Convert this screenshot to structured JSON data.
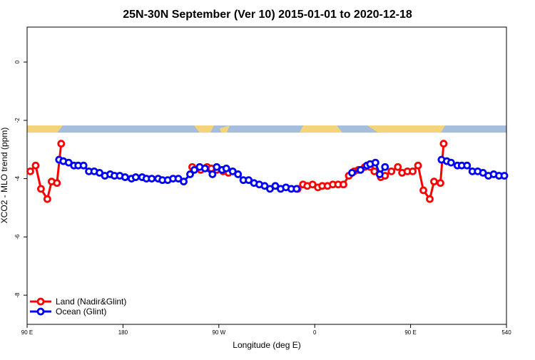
{
  "chart_data": {
    "type": "line",
    "title": "25N-30N September (Ver 10)   2015-01-01 to 2020-12-18",
    "xlabel": "Longitude (deg E)",
    "ylabel": "XCO2 - MLO trend (ppm)",
    "xlim": [
      90,
      540
    ],
    "xticks": [
      {
        "value": 90,
        "label": "90 E"
      },
      180,
      {
        "value": 270,
        "label": "90 W"
      },
      {
        "value": 360,
        "label": "0"
      },
      {
        "value": 450,
        "label": "90 E"
      },
      540
    ],
    "ylim": [
      -9,
      1.2
    ],
    "yticks": [
      0,
      -2,
      -4,
      -6,
      -8
    ],
    "legend": "bottom-left",
    "series": [
      {
        "name": "Land (Nadir&Glint)",
        "color": "#ff0000",
        "x": [
          93,
          98,
          103,
          109,
          113,
          118,
          122,
          null,
          245,
          253,
          259,
          263,
          268,
          274,
          279,
          null,
          344,
          349,
          353,
          358,
          363,
          367,
          372,
          377,
          382,
          387,
          392,
          397,
          401,
          407,
          412,
          416,
          422,
          426,
          432,
          438,
          442,
          447,
          452,
          457,
          462,
          468,
          472,
          478,
          481
        ],
        "values": [
          -3.75,
          -3.55,
          -4.35,
          -4.7,
          -4.1,
          -4.15,
          -2.8,
          null,
          -3.6,
          -3.7,
          -3.6,
          -3.65,
          -3.7,
          -3.75,
          -3.8,
          null,
          -4.35,
          -4.2,
          -4.25,
          -4.2,
          -4.3,
          -4.25,
          -4.25,
          -4.2,
          -4.2,
          -4.2,
          -3.9,
          -3.75,
          -3.7,
          -3.6,
          -3.6,
          -3.75,
          -3.95,
          -3.9,
          -3.75,
          -3.6,
          -3.8,
          -3.75,
          -3.75,
          -3.55,
          -4.4,
          -4.7,
          -4.1,
          -4.15,
          -2.8
        ]
      },
      {
        "name": "Ocean (Glint)",
        "color": "#0000ff",
        "x": [
          120,
          124,
          129,
          134,
          138,
          143,
          148,
          153,
          158,
          163,
          168,
          172,
          177,
          182,
          188,
          192,
          198,
          202,
          207,
          213,
          217,
          222,
          227,
          232,
          237,
          243,
          247,
          252,
          257,
          264,
          268,
          273,
          277,
          283,
          288,
          293,
          298,
          303,
          308,
          313,
          318,
          323,
          328,
          333,
          338,
          343,
          null,
          395,
          403,
          409,
          412,
          417,
          421,
          426,
          null,
          479,
          484,
          488,
          494,
          498,
          503,
          508,
          513,
          518,
          523,
          528,
          533,
          538
        ],
        "values": [
          -3.35,
          -3.4,
          -3.45,
          -3.55,
          -3.55,
          -3.55,
          -3.75,
          -3.75,
          -3.8,
          -3.9,
          -3.85,
          -3.9,
          -3.9,
          -3.95,
          -4.0,
          -3.95,
          -3.95,
          -4.0,
          -4.0,
          -4.0,
          -4.05,
          -4.05,
          -4.0,
          -4.0,
          -4.1,
          -3.85,
          -3.7,
          -3.6,
          -3.65,
          -3.85,
          -3.6,
          -3.7,
          -3.65,
          -3.75,
          -3.85,
          -4.05,
          -4.05,
          -4.15,
          -4.2,
          -4.25,
          -4.35,
          -4.25,
          -4.35,
          -4.3,
          -4.35,
          -4.35,
          null,
          -3.8,
          -3.7,
          -3.55,
          -3.5,
          -3.45,
          -3.85,
          -3.6,
          null,
          -3.35,
          -3.4,
          -3.45,
          -3.55,
          -3.55,
          -3.55,
          -3.75,
          -3.75,
          -3.8,
          -3.9,
          -3.85,
          -3.9,
          -3.9
        ]
      }
    ]
  }
}
